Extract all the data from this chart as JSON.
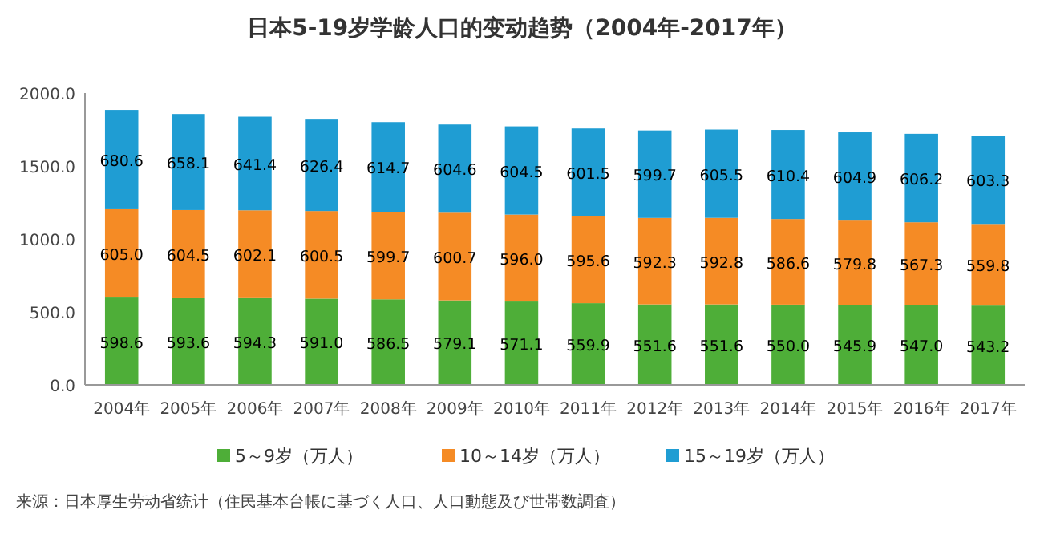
{
  "chart_data": {
    "type": "bar",
    "stacked": true,
    "title": "日本5-19岁学龄人口的变动趋势（2004年-2017年）",
    "categories": [
      "2004年",
      "2005年",
      "2006年",
      "2007年",
      "2008年",
      "2009年",
      "2010年",
      "2011年",
      "2012年",
      "2013年",
      "2014年",
      "2015年",
      "2016年",
      "2017年"
    ],
    "series": [
      {
        "name": "5～9岁（万人）",
        "color": "#4eae38",
        "values": [
          598.6,
          593.6,
          594.3,
          591,
          586.5,
          579.1,
          571.1,
          559.9,
          551.6,
          551.6,
          550,
          545.9,
          547,
          543.2
        ],
        "value_labels": [
          "598.6",
          "593.6",
          "594.3",
          "591.0",
          "586.5",
          "579.1",
          "571.1",
          "559.9",
          "551.6",
          "551.6",
          "550.0",
          "545.9",
          "547.0",
          "543.2"
        ]
      },
      {
        "name": "10～14岁（万人）",
        "color": "#f58b25",
        "values": [
          605,
          604.5,
          602.1,
          600.5,
          599.7,
          600.7,
          596,
          595.6,
          592.3,
          592.8,
          586.6,
          579.8,
          567.3,
          559.8
        ],
        "value_labels": [
          "605.0",
          "604.5",
          "602.1",
          "600.5",
          "599.7",
          "600.7",
          "596.0",
          "595.6",
          "592.3",
          "592.8",
          "586.6",
          "579.8",
          "567.3",
          "559.8"
        ]
      },
      {
        "name": "15～19岁（万人）",
        "color": "#1f9dd3",
        "values": [
          680.6,
          658.1,
          641.4,
          626.4,
          614.7,
          604.6,
          604.5,
          601.5,
          599.7,
          605.5,
          610.4,
          604.9,
          606.2,
          603.3
        ],
        "value_labels": [
          "680.6",
          "658.1",
          "641.4",
          "626.4",
          "614.7",
          "604.6",
          "604.5",
          "601.5",
          "599.7",
          "605.5",
          "610.4",
          "604.9",
          "606.2",
          "603.3"
        ]
      }
    ],
    "ylim": [
      0,
      2000
    ],
    "yticks": [
      {
        "value": 0,
        "label": "0.0"
      },
      {
        "value": 500,
        "label": "500.0"
      },
      {
        "value": 1000,
        "label": "1000.0"
      },
      {
        "value": 1500,
        "label": "1500.0"
      },
      {
        "value": 2000,
        "label": "2000.0"
      }
    ],
    "legend": "bottom",
    "annotations": [
      "来源：日本厚生劳动省统计（住民基本台帳に基づく人口、人口動態及び世帯数調査）"
    ]
  }
}
